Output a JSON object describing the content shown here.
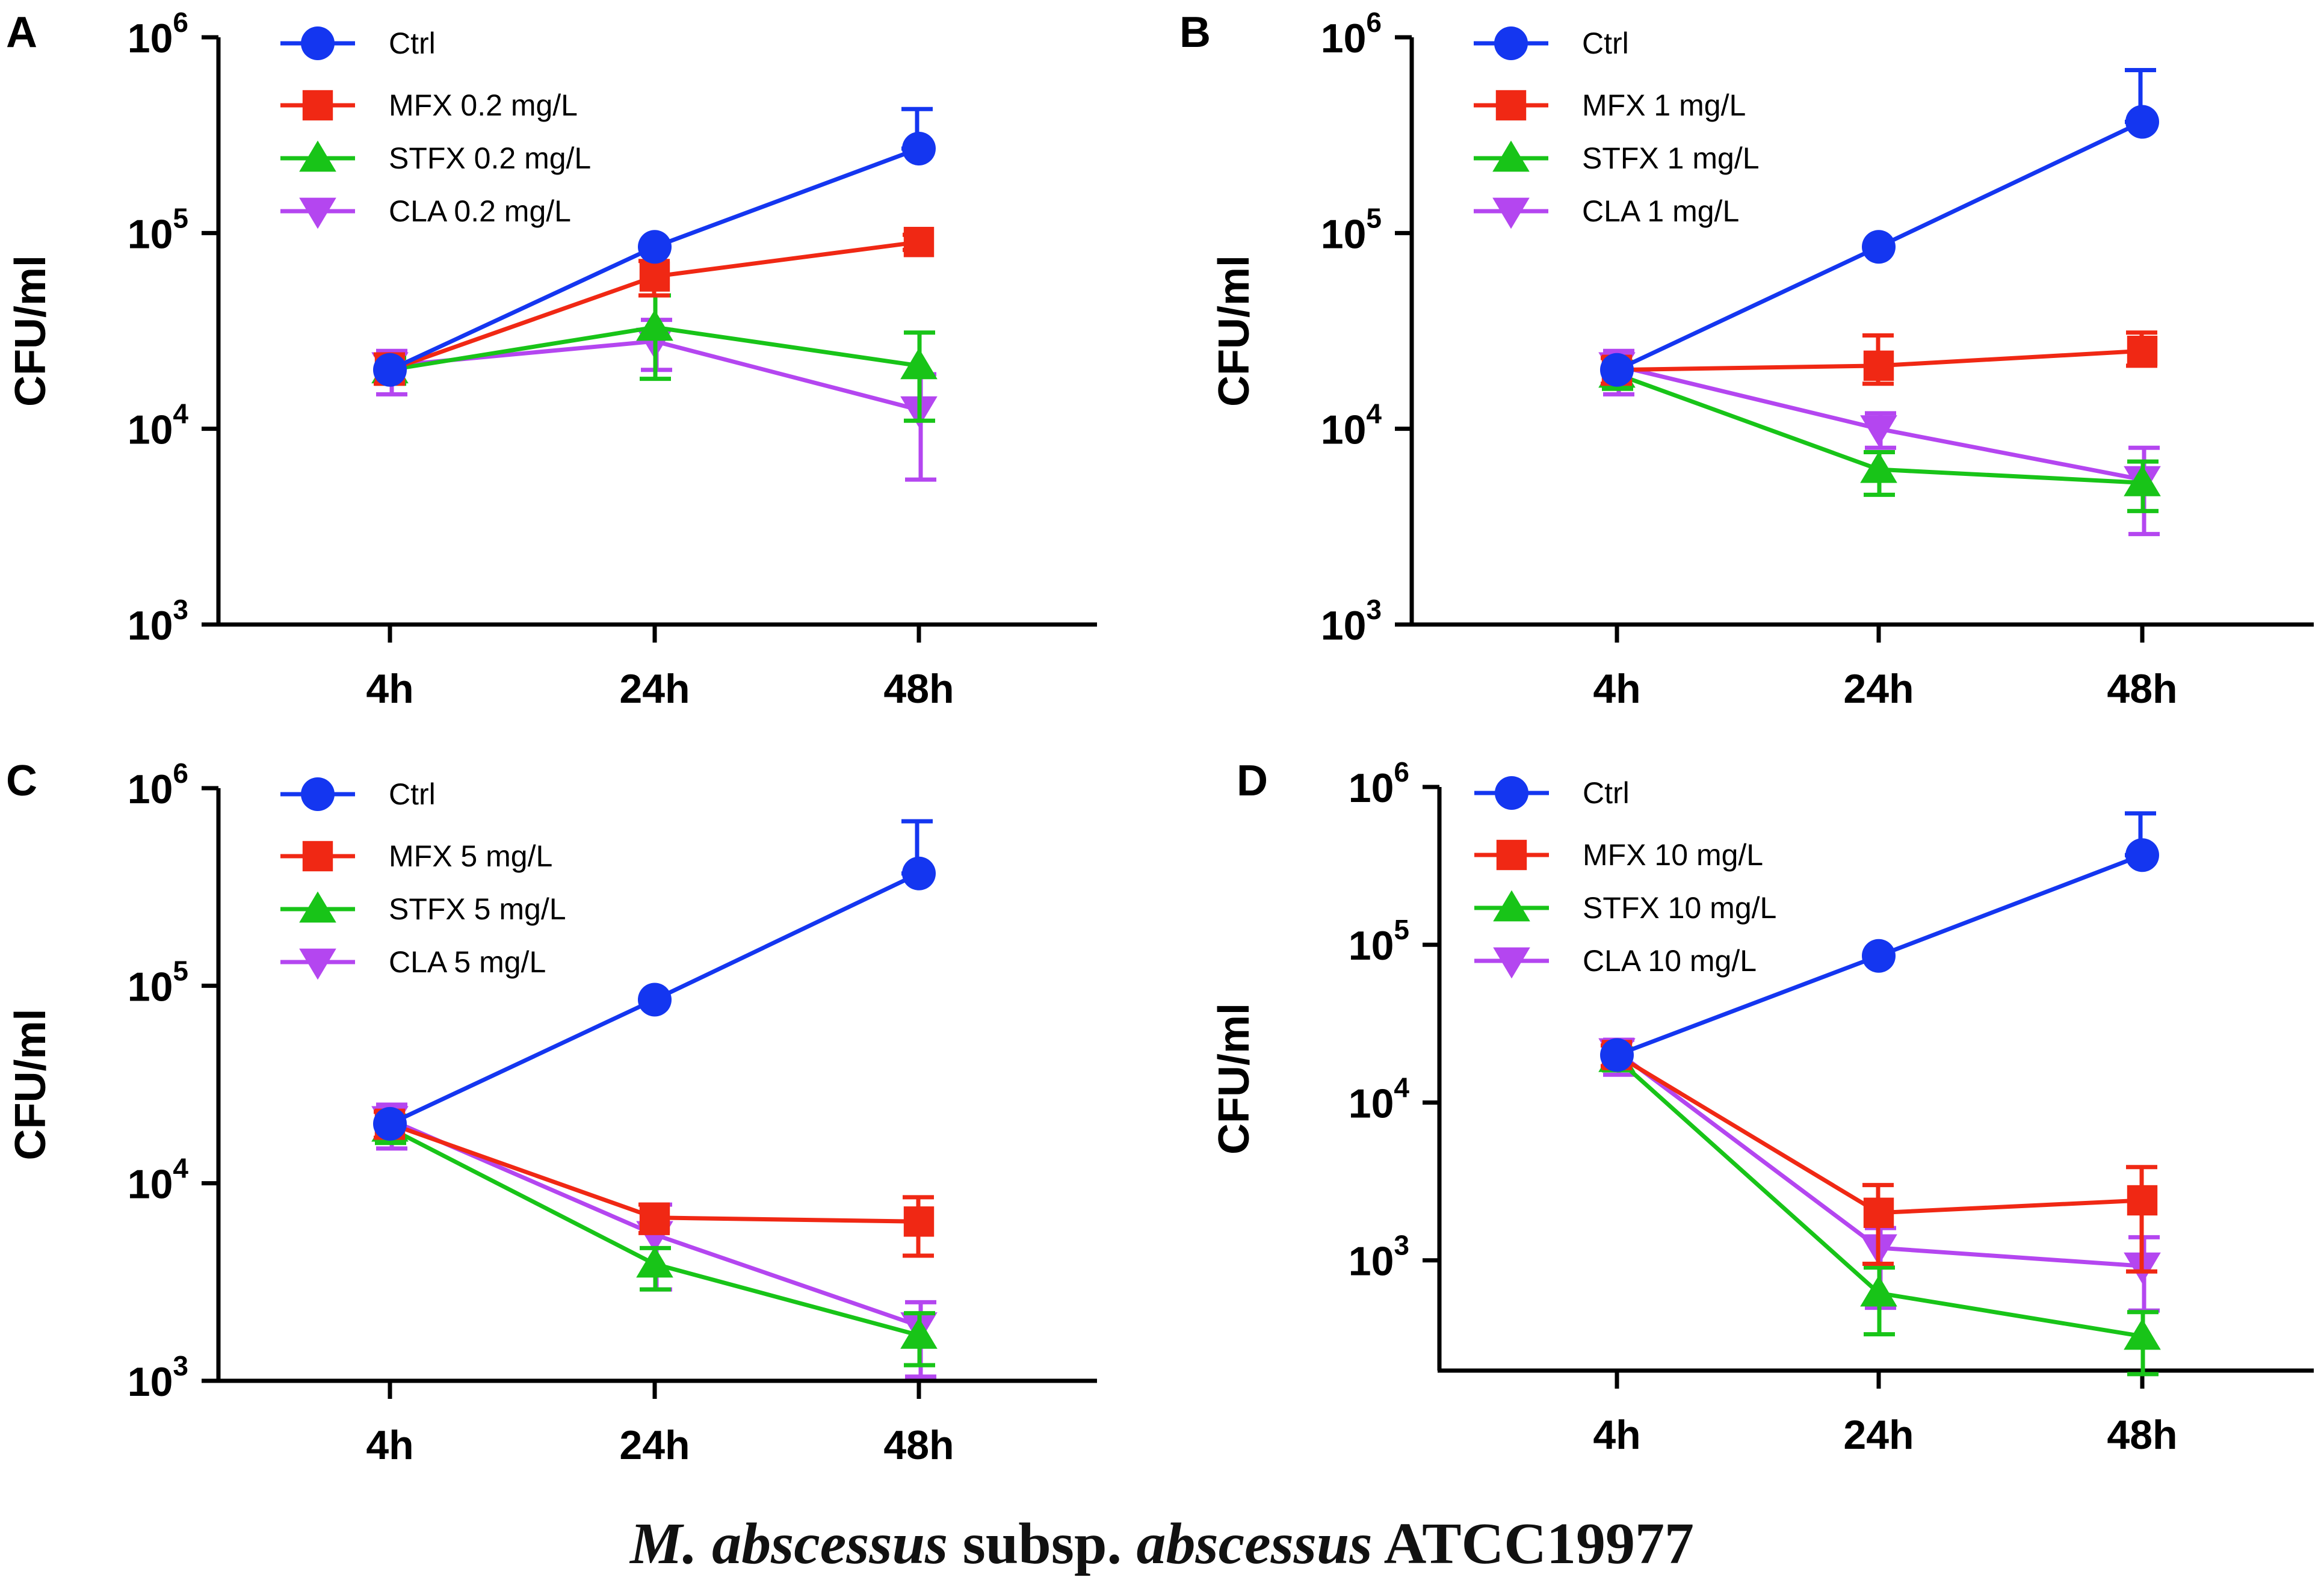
{
  "caption": {
    "species": "M. abscessus",
    "subsp_label": "subsp.",
    "subspecies": "abscessus",
    "strain": "ATCC19977"
  },
  "colors": {
    "ctrl": "#1436f0",
    "mfx": "#f02814",
    "stfx": "#18c418",
    "cla": "#b446f0",
    "axis": "#000000"
  },
  "chart_data": [
    {
      "panel": "A",
      "type": "line",
      "ylabel": "CFU/ml",
      "yscale": "log",
      "ylim": [
        1000,
        1000000
      ],
      "yticks": [
        {
          "base": "10",
          "exp": "3"
        },
        {
          "base": "10",
          "exp": "4"
        },
        {
          "base": "10",
          "exp": "5"
        },
        {
          "base": "10",
          "exp": "6"
        }
      ],
      "categories": [
        "4h",
        "24h",
        "48h"
      ],
      "series": [
        {
          "name": "Ctrl",
          "key": "ctrl",
          "marker": "circle",
          "values": [
            20000,
            85000,
            270000
          ],
          "err_hi": [
            20000,
            85000,
            430000
          ],
          "err_lo": [
            20000,
            85000,
            270000
          ]
        },
        {
          "name": "MFX 0.2 mg/L",
          "key": "mfx",
          "marker": "square",
          "values": [
            20000,
            60000,
            90000
          ],
          "err_hi": [
            24000,
            72000,
            98000
          ],
          "err_lo": [
            17000,
            48000,
            82000
          ]
        },
        {
          "name": "STFX 0.2 mg/L",
          "key": "stfx",
          "marker": "triangle-up",
          "values": [
            20000,
            33000,
            21000
          ],
          "err_hi": [
            23000,
            48000,
            31000
          ],
          "err_lo": [
            17000,
            18000,
            11000
          ]
        },
        {
          "name": "CLA 0.2 mg/L",
          "key": "cla",
          "marker": "triangle-down",
          "values": [
            21000,
            28000,
            12500
          ],
          "err_hi": [
            25000,
            36000,
            19000
          ],
          "err_lo": [
            15000,
            20000,
            5500
          ]
        }
      ]
    },
    {
      "panel": "B",
      "type": "line",
      "ylabel": "CFU/ml",
      "yscale": "log",
      "ylim": [
        1000,
        1000000
      ],
      "yticks": [
        {
          "base": "10",
          "exp": "3"
        },
        {
          "base": "10",
          "exp": "4"
        },
        {
          "base": "10",
          "exp": "5"
        },
        {
          "base": "10",
          "exp": "6"
        }
      ],
      "categories": [
        "4h",
        "24h",
        "48h"
      ],
      "series": [
        {
          "name": "Ctrl",
          "key": "ctrl",
          "marker": "circle",
          "values": [
            20000,
            85000,
            370000
          ],
          "err_hi": [
            20000,
            85000,
            680000
          ],
          "err_lo": [
            20000,
            85000,
            370000
          ]
        },
        {
          "name": "MFX 1 mg/L",
          "key": "mfx",
          "marker": "square",
          "values": [
            20000,
            21000,
            25000
          ],
          "err_hi": [
            23000,
            30000,
            31000
          ],
          "err_lo": [
            17000,
            17000,
            21000
          ]
        },
        {
          "name": "STFX 1 mg/L",
          "key": "stfx",
          "marker": "triangle-up",
          "values": [
            19000,
            6200,
            5300
          ],
          "err_hi": [
            22000,
            7600,
            6800
          ],
          "err_lo": [
            16000,
            4600,
            3800
          ]
        },
        {
          "name": "CLA 1 mg/L",
          "key": "cla",
          "marker": "triangle-down",
          "values": [
            21000,
            10000,
            5500
          ],
          "err_hi": [
            25000,
            12000,
            8000
          ],
          "err_lo": [
            15000,
            8000,
            2900
          ]
        }
      ]
    },
    {
      "panel": "C",
      "type": "line",
      "ylabel": "CFU/ml",
      "yscale": "log",
      "ylim": [
        1000,
        1000000
      ],
      "yticks": [
        {
          "base": "10",
          "exp": "3"
        },
        {
          "base": "10",
          "exp": "4"
        },
        {
          "base": "10",
          "exp": "5"
        },
        {
          "base": "10",
          "exp": "6"
        }
      ],
      "categories": [
        "4h",
        "24h",
        "48h"
      ],
      "series": [
        {
          "name": "Ctrl",
          "key": "ctrl",
          "marker": "circle",
          "values": [
            20000,
            85000,
            370000
          ],
          "err_hi": [
            20000,
            85000,
            680000
          ],
          "err_lo": [
            20000,
            85000,
            370000
          ]
        },
        {
          "name": "MFX 5 mg/L",
          "key": "mfx",
          "marker": "square",
          "values": [
            20000,
            6700,
            6400
          ],
          "err_hi": [
            23000,
            7800,
            8500
          ],
          "err_lo": [
            17000,
            5600,
            4300
          ]
        },
        {
          "name": "STFX 5 mg/L",
          "key": "stfx",
          "marker": "triangle-up",
          "values": [
            19000,
            3900,
            1700
          ],
          "err_hi": [
            22000,
            4700,
            2200
          ],
          "err_lo": [
            16000,
            2900,
            1200
          ]
        },
        {
          "name": "CLA 5 mg/L",
          "key": "cla",
          "marker": "triangle-down",
          "values": [
            21000,
            5500,
            1900
          ],
          "err_hi": [
            25000,
            7800,
            2500
          ],
          "err_lo": [
            15000,
            2900,
            1050
          ]
        }
      ]
    },
    {
      "panel": "D",
      "type": "line",
      "ylabel": "CFU/ml",
      "yscale": "log",
      "ylim": [
        200,
        1000000
      ],
      "yticks": [
        {
          "base": "10",
          "exp": "3"
        },
        {
          "base": "10",
          "exp": "4"
        },
        {
          "base": "10",
          "exp": "5"
        },
        {
          "base": "10",
          "exp": "6"
        }
      ],
      "categories": [
        "4h",
        "24h",
        "48h"
      ],
      "series": [
        {
          "name": "Ctrl",
          "key": "ctrl",
          "marker": "circle",
          "values": [
            20000,
            85000,
            370000
          ],
          "err_hi": [
            20000,
            85000,
            680000
          ],
          "err_lo": [
            20000,
            85000,
            370000
          ]
        },
        {
          "name": "MFX 10 mg/L",
          "key": "mfx",
          "marker": "square",
          "values": [
            20000,
            2000,
            2400
          ],
          "err_hi": [
            23000,
            3000,
            3900
          ],
          "err_lo": [
            17000,
            950,
            850
          ]
        },
        {
          "name": "STFX 10 mg/L",
          "key": "stfx",
          "marker": "triangle-up",
          "values": [
            19000,
            620,
            330
          ],
          "err_hi": [
            22000,
            900,
            470
          ],
          "err_lo": [
            16000,
            340,
            190
          ]
        },
        {
          "name": "CLA 10 mg/L",
          "key": "cla",
          "marker": "triangle-down",
          "values": [
            21000,
            1200,
            920
          ],
          "err_hi": [
            25000,
            1600,
            1400
          ],
          "err_lo": [
            15000,
            500,
            480
          ]
        }
      ]
    }
  ]
}
